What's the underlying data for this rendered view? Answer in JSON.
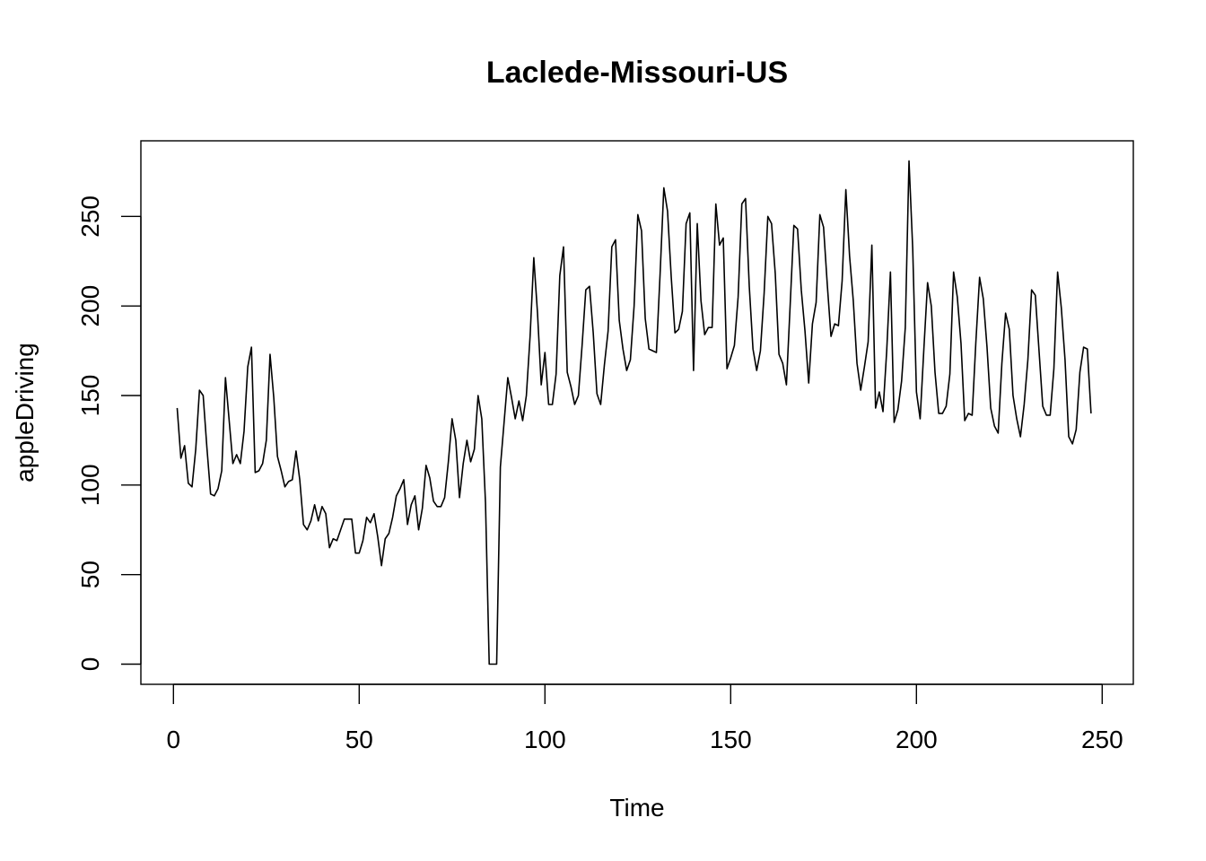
{
  "chart_data": {
    "type": "line",
    "title": "Laclede-Missouri-US",
    "xlabel": "Time",
    "ylabel": "appleDriving",
    "xlim": [
      1,
      248
    ],
    "ylim": [
      0,
      281
    ],
    "xticks": [
      0,
      50,
      100,
      150,
      200,
      250
    ],
    "yticks": [
      0,
      50,
      100,
      150,
      200,
      250
    ],
    "grid": false,
    "series": [
      {
        "x_start": 1,
        "values": [
          143,
          115,
          122,
          101,
          99,
          120,
          153,
          150,
          121,
          95,
          94,
          98,
          108,
          160,
          136,
          112,
          117,
          112,
          130,
          166,
          177,
          107,
          108,
          112,
          125,
          173,
          149,
          116,
          108,
          99,
          102,
          103,
          119,
          103,
          78,
          75,
          80,
          89,
          80,
          88,
          84,
          65,
          70,
          69,
          75,
          81,
          81,
          81,
          62,
          62,
          69,
          82,
          79,
          84,
          71,
          55,
          70,
          73,
          82,
          94,
          98,
          103,
          78,
          89,
          94,
          75,
          87,
          111,
          104,
          91,
          88,
          88,
          93,
          113,
          137,
          125,
          93,
          112,
          125,
          113,
          120,
          150,
          137,
          90,
          0,
          0,
          0,
          110,
          135,
          160,
          149,
          137,
          147,
          136,
          150,
          183,
          227,
          196,
          156,
          174,
          145,
          145,
          162,
          217,
          233,
          163,
          155,
          145,
          150,
          178,
          209,
          211,
          185,
          151,
          145,
          167,
          186,
          233,
          237,
          192,
          176,
          164,
          170,
          200,
          251,
          242,
          193,
          176,
          175,
          174,
          218,
          266,
          253,
          216,
          185,
          187,
          197,
          246,
          252,
          164,
          246,
          203,
          184,
          188,
          188,
          257,
          234,
          238,
          165,
          171,
          178,
          205,
          257,
          260,
          211,
          176,
          164,
          175,
          207,
          250,
          246,
          218,
          173,
          168,
          156,
          200,
          245,
          243,
          209,
          186,
          157,
          190,
          202,
          251,
          244,
          212,
          183,
          190,
          189,
          214,
          265,
          228,
          203,
          168,
          153,
          166,
          180,
          234,
          143,
          152,
          141,
          175,
          219,
          135,
          142,
          158,
          188,
          281,
          232,
          152,
          137,
          176,
          213,
          200,
          163,
          140,
          140,
          144,
          162,
          219,
          205,
          179,
          136,
          140,
          139,
          180,
          216,
          204,
          177,
          143,
          133,
          129,
          168,
          196,
          187,
          150,
          137,
          127,
          145,
          170,
          209,
          206,
          175,
          144,
          139,
          139,
          165,
          219,
          199,
          170,
          127,
          123,
          131,
          163,
          177,
          176,
          140
        ]
      }
    ]
  }
}
